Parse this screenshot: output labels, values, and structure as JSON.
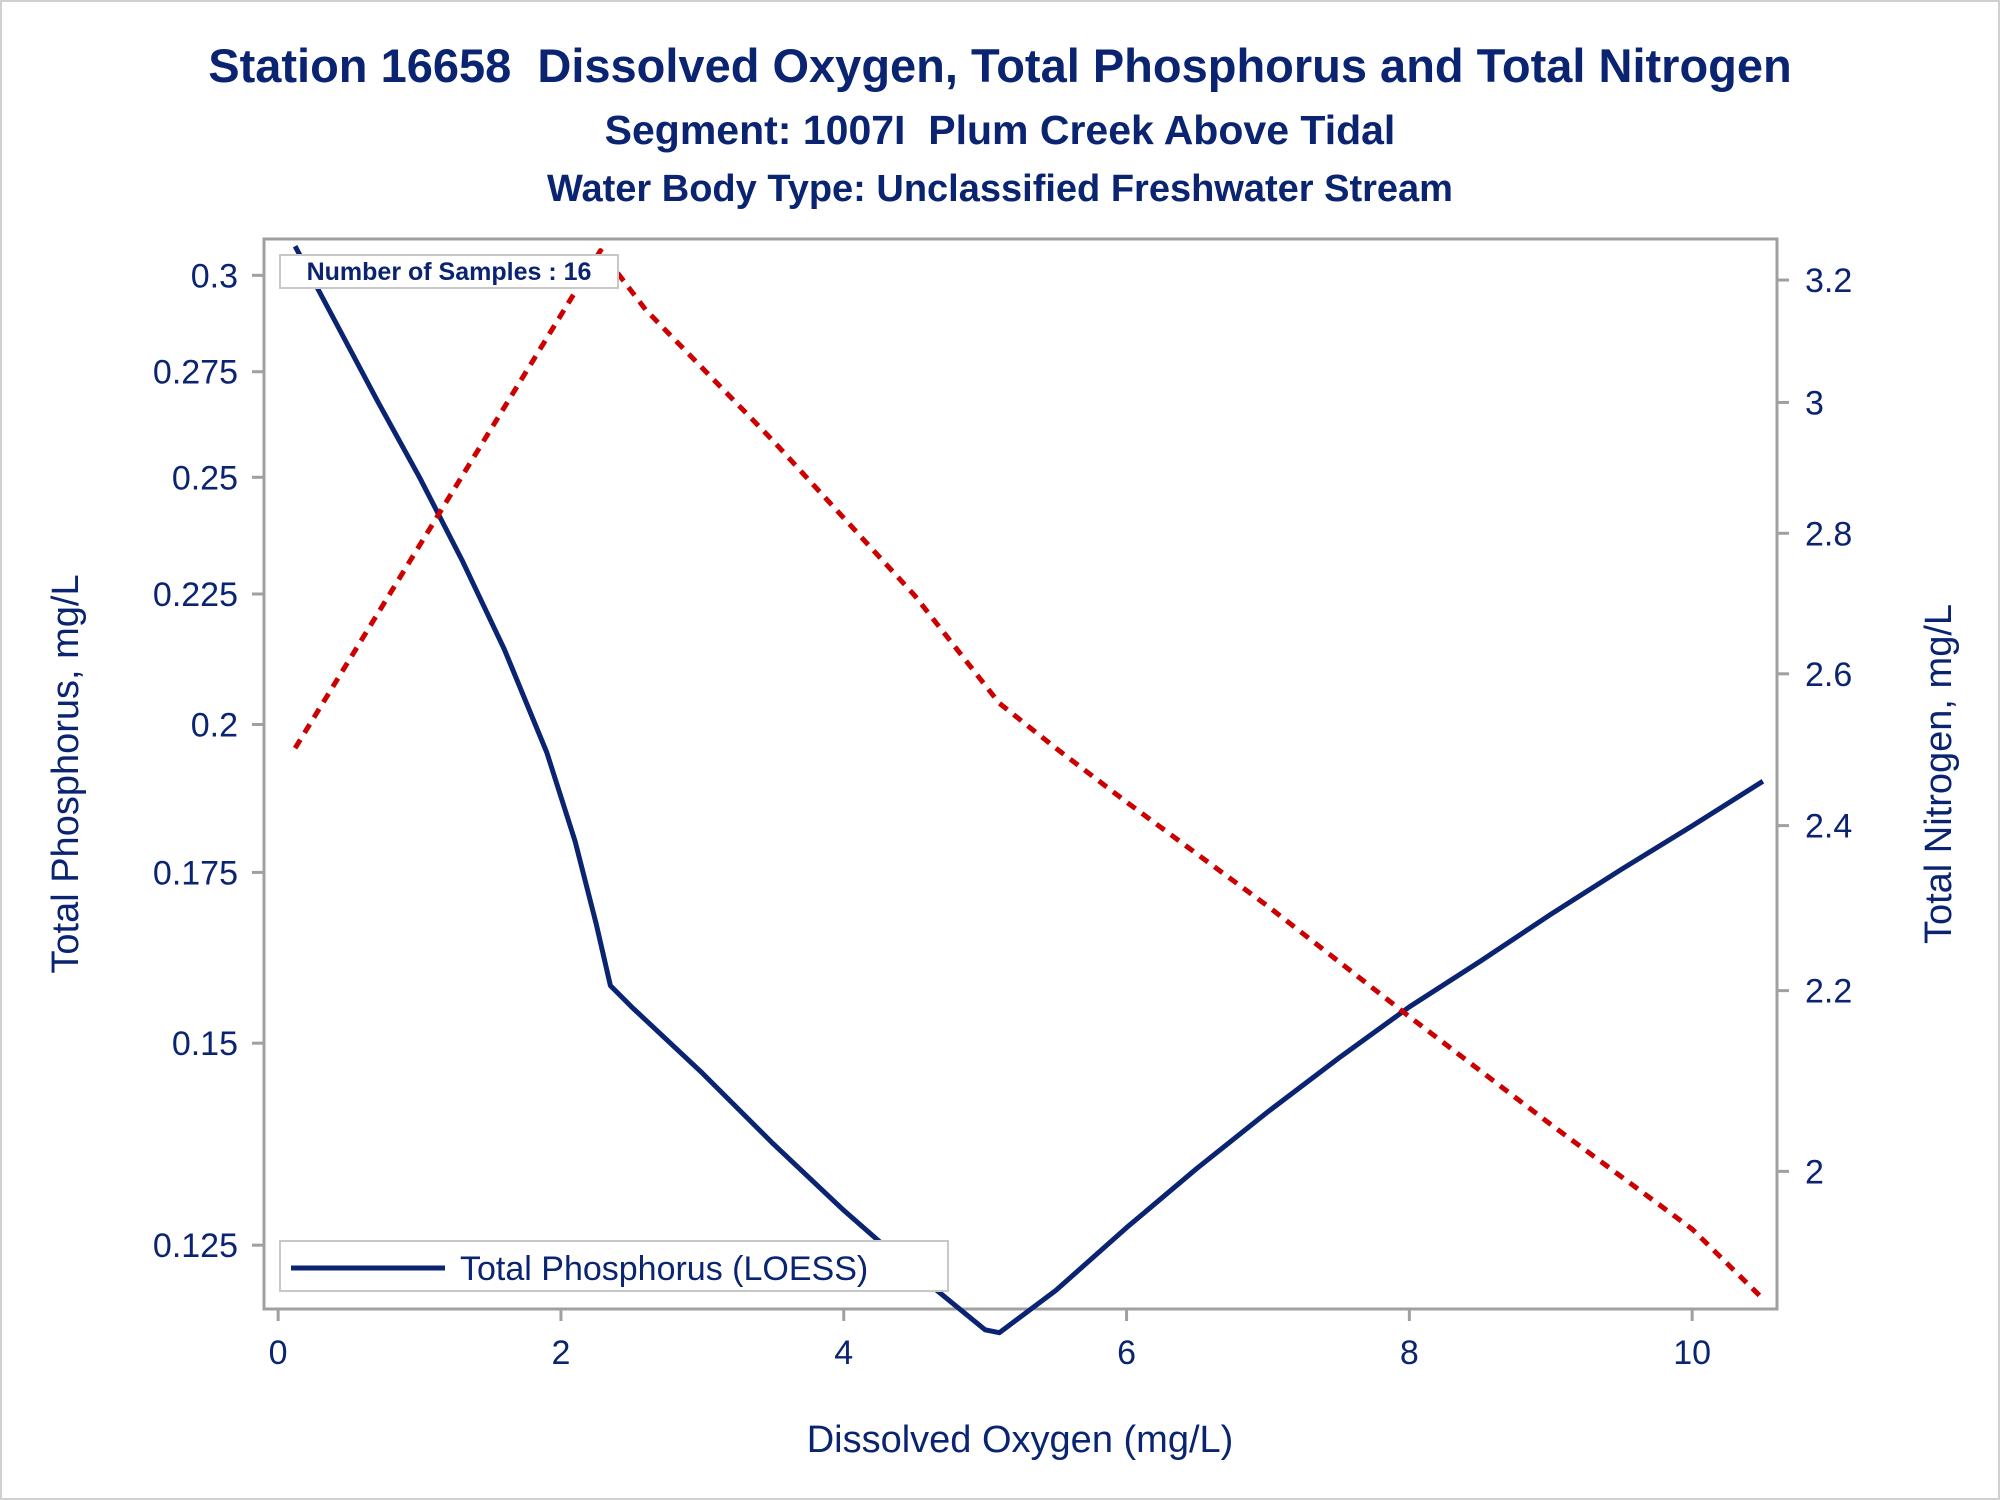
{
  "chart_data": {
    "type": "line",
    "title": "Station 16658  Dissolved Oxygen, Total Phosphorus and Total Nitrogen",
    "subtitle": "Segment: 1007I  Plum Creek Above Tidal",
    "subtitle2": "Water Body Type: Unclassified Freshwater Stream",
    "xlabel": "Dissolved Oxygen (mg/L)",
    "ylabel": "Total Phosphorus, mg/L",
    "y2label": "Total Nitrogen, mg/L",
    "xlim": [
      -0.1,
      10.6
    ],
    "ylim": [
      0.118,
      0.31
    ],
    "y2lim": [
      1.86,
      3.27
    ],
    "y_scale": "log",
    "y2_scale": "log",
    "x_ticks": [
      "0",
      "2",
      "4",
      "6",
      "8",
      "10"
    ],
    "y_ticks": [
      "0.125",
      "0.15",
      "0.175",
      "0.2",
      "0.225",
      "0.25",
      "0.275",
      "0.3"
    ],
    "y2_ticks": [
      "2",
      "2.2",
      "2.4",
      "2.6",
      "2.8",
      "3",
      "3.2"
    ],
    "annotation": "Number of Samples : 16",
    "legend": {
      "position": "bottom-left",
      "label": "Total Phosphorus (LOESS)"
    },
    "series": [
      {
        "name": "Total Phosphorus (LOESS)",
        "axis": "left",
        "color": "#0a2472",
        "style": "solid",
        "x": [
          0.12,
          0.4,
          0.7,
          1.0,
          1.3,
          1.6,
          1.9,
          2.1,
          2.25,
          2.35,
          2.5,
          3.0,
          3.5,
          4.0,
          4.5,
          5.0,
          5.1,
          5.5,
          6.0,
          6.5,
          7.0,
          7.5,
          8.0,
          8.5,
          9.0,
          9.5,
          10.0,
          10.5
        ],
        "y": [
          0.308,
          0.288,
          0.268,
          0.25,
          0.232,
          0.214,
          0.195,
          0.18,
          0.167,
          0.158,
          0.155,
          0.146,
          0.137,
          0.129,
          0.122,
          0.1158,
          0.1155,
          0.12,
          0.127,
          0.134,
          0.141,
          0.148,
          0.155,
          0.1615,
          0.1685,
          0.1755,
          0.1825,
          0.19
        ]
      },
      {
        "name": "",
        "axis": "right",
        "color": "#cc0000",
        "style": "dashed",
        "x": [
          0.12,
          2.28,
          2.6,
          3.5,
          4.5,
          5.1,
          5.5,
          6.0,
          7.0,
          8.0,
          9.0,
          10.0,
          10.5
        ],
        "y": [
          2.5,
          3.25,
          3.15,
          2.94,
          2.71,
          2.56,
          2.5,
          2.43,
          2.3,
          2.17,
          2.05,
          1.94,
          1.87
        ]
      }
    ]
  }
}
